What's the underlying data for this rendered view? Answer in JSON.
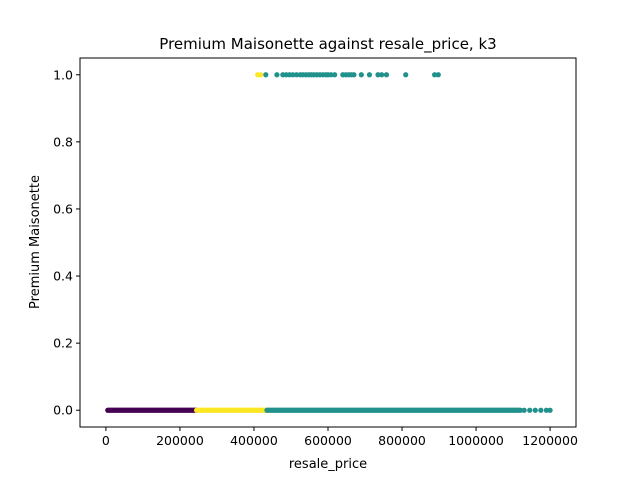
{
  "chart_data": {
    "type": "scatter",
    "title": "Premium Maisonette against resale_price, k3",
    "xlabel": "resale_price",
    "ylabel": "Premium Maisonette",
    "xlim": [
      -70000,
      1270000
    ],
    "ylim": [
      -0.05,
      1.05
    ],
    "xticks": [
      0,
      200000,
      400000,
      600000,
      800000,
      1000000,
      1200000
    ],
    "xtick_labels": [
      "0",
      "200000",
      "400000",
      "600000",
      "800000",
      "1000000",
      "1200000"
    ],
    "yticks": [
      0.0,
      0.2,
      0.4,
      0.6,
      0.8,
      1.0
    ],
    "ytick_labels": [
      "0.0",
      "0.2",
      "0.4",
      "0.6",
      "0.8",
      "1.0"
    ],
    "grid": false,
    "legend": "none",
    "series": [
      {
        "color": "#440154",
        "bands": [
          {
            "y": 0,
            "from": 5000,
            "to": 245000
          }
        ],
        "points": []
      },
      {
        "color": "#fde725",
        "bands": [
          {
            "y": 0,
            "from": 245000,
            "to": 435000
          }
        ],
        "points": [
          {
            "x": 410000,
            "y": 1
          },
          {
            "x": 418000,
            "y": 1
          }
        ]
      },
      {
        "color": "#21918c",
        "bands": [
          {
            "y": 0,
            "from": 435000,
            "to": 1120000
          }
        ],
        "points": [
          {
            "x": 1130000,
            "y": 0
          },
          {
            "x": 1145000,
            "y": 0
          },
          {
            "x": 1160000,
            "y": 0
          },
          {
            "x": 1175000,
            "y": 0
          },
          {
            "x": 1190000,
            "y": 0
          },
          {
            "x": 1200000,
            "y": 0
          },
          {
            "x": 432000,
            "y": 1
          },
          {
            "x": 462000,
            "y": 1
          },
          {
            "x": 478000,
            "y": 1
          },
          {
            "x": 487000,
            "y": 1
          },
          {
            "x": 496000,
            "y": 1
          },
          {
            "x": 505000,
            "y": 1
          },
          {
            "x": 515000,
            "y": 1
          },
          {
            "x": 525000,
            "y": 1
          },
          {
            "x": 532000,
            "y": 1
          },
          {
            "x": 540000,
            "y": 1
          },
          {
            "x": 548000,
            "y": 1
          },
          {
            "x": 555000,
            "y": 1
          },
          {
            "x": 562000,
            "y": 1
          },
          {
            "x": 570000,
            "y": 1
          },
          {
            "x": 578000,
            "y": 1
          },
          {
            "x": 586000,
            "y": 1
          },
          {
            "x": 594000,
            "y": 1
          },
          {
            "x": 600000,
            "y": 1
          },
          {
            "x": 608000,
            "y": 1
          },
          {
            "x": 618000,
            "y": 1
          },
          {
            "x": 640000,
            "y": 1
          },
          {
            "x": 648000,
            "y": 1
          },
          {
            "x": 656000,
            "y": 1
          },
          {
            "x": 663000,
            "y": 1
          },
          {
            "x": 670000,
            "y": 1
          },
          {
            "x": 690000,
            "y": 1
          },
          {
            "x": 712000,
            "y": 1
          },
          {
            "x": 735000,
            "y": 1
          },
          {
            "x": 745000,
            "y": 1
          },
          {
            "x": 758000,
            "y": 1
          },
          {
            "x": 810000,
            "y": 1
          },
          {
            "x": 888000,
            "y": 1
          },
          {
            "x": 898000,
            "y": 1
          }
        ]
      }
    ]
  }
}
